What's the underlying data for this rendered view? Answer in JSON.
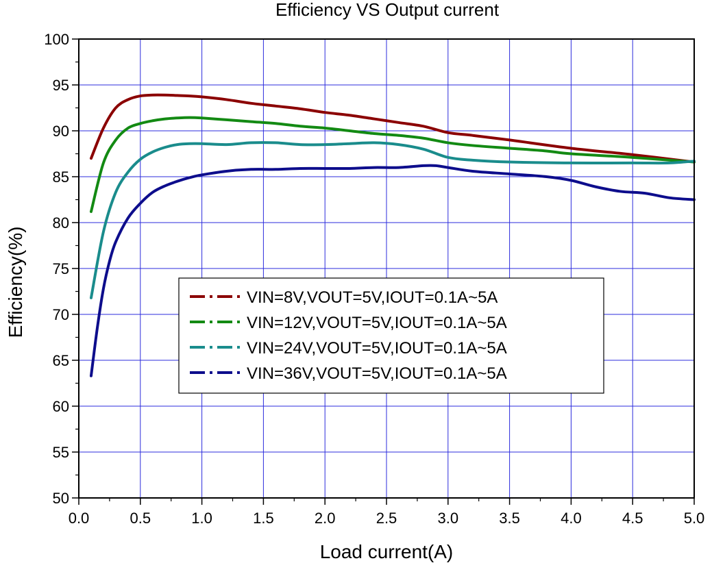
{
  "chart_data": {
    "type": "line",
    "title": "Efficiency VS Output current",
    "xlabel": "Load current(A)",
    "ylabel": "Efficiency(%)",
    "xlim": [
      0.0,
      5.0
    ],
    "ylim": [
      50,
      100
    ],
    "xticks": [
      "0.0",
      "0.5",
      "1.0",
      "1.5",
      "2.0",
      "2.5",
      "3.0",
      "3.5",
      "4.0",
      "4.5",
      "5.0"
    ],
    "yticks": [
      "50",
      "55",
      "60",
      "65",
      "70",
      "75",
      "80",
      "85",
      "90",
      "95",
      "100"
    ],
    "grid": true,
    "legend_position": "center",
    "series": [
      {
        "name": "VIN=8V,VOUT=5V,IOUT=0.1A~5A",
        "color": "#8b0000",
        "x": [
          0.1,
          0.2,
          0.3,
          0.4,
          0.5,
          0.6,
          0.7,
          0.8,
          0.9,
          1.0,
          1.2,
          1.4,
          1.6,
          1.8,
          2.0,
          2.2,
          2.4,
          2.6,
          2.8,
          3.0,
          3.2,
          3.5,
          4.0,
          4.5,
          5.0
        ],
        "y": [
          87.0,
          90.3,
          92.5,
          93.4,
          93.8,
          93.9,
          93.9,
          93.85,
          93.8,
          93.7,
          93.4,
          93.0,
          92.7,
          92.4,
          92.0,
          91.7,
          91.3,
          90.9,
          90.5,
          89.8,
          89.5,
          89.0,
          88.1,
          87.4,
          86.6
        ]
      },
      {
        "name": "VIN=12V,VOUT=5V,IOUT=0.1A~5A",
        "color": "#138a13",
        "x": [
          0.1,
          0.2,
          0.3,
          0.4,
          0.5,
          0.6,
          0.7,
          0.8,
          0.9,
          1.0,
          1.2,
          1.4,
          1.6,
          1.8,
          2.0,
          2.2,
          2.4,
          2.6,
          2.8,
          3.0,
          3.2,
          3.5,
          3.8,
          4.0,
          4.5,
          5.0
        ],
        "y": [
          81.2,
          86.5,
          89.0,
          90.3,
          90.8,
          91.1,
          91.3,
          91.4,
          91.45,
          91.4,
          91.2,
          91.0,
          90.8,
          90.5,
          90.3,
          90.0,
          89.7,
          89.5,
          89.2,
          88.7,
          88.4,
          88.1,
          87.8,
          87.5,
          87.1,
          86.6
        ]
      },
      {
        "name": "VIN=24V,VOUT=5V,IOUT=0.1A~5A",
        "color": "#1a8c8c",
        "x": [
          0.1,
          0.2,
          0.3,
          0.4,
          0.5,
          0.6,
          0.7,
          0.8,
          0.9,
          1.0,
          1.2,
          1.4,
          1.6,
          1.8,
          2.0,
          2.2,
          2.4,
          2.6,
          2.8,
          3.0,
          3.2,
          3.5,
          4.0,
          4.5,
          4.8,
          5.0
        ],
        "y": [
          71.8,
          79.0,
          83.3,
          85.5,
          86.9,
          87.7,
          88.2,
          88.5,
          88.6,
          88.6,
          88.5,
          88.7,
          88.7,
          88.5,
          88.5,
          88.6,
          88.7,
          88.5,
          88.0,
          87.1,
          86.8,
          86.6,
          86.5,
          86.5,
          86.5,
          86.7
        ]
      },
      {
        "name": "VIN=36V,VOUT=5V,IOUT=0.1A~5A",
        "color": "#0d0d8c",
        "x": [
          0.1,
          0.15,
          0.2,
          0.25,
          0.3,
          0.4,
          0.5,
          0.6,
          0.7,
          0.8,
          0.9,
          1.0,
          1.2,
          1.4,
          1.6,
          1.8,
          2.0,
          2.2,
          2.4,
          2.6,
          2.8,
          2.9,
          3.0,
          3.2,
          3.5,
          3.8,
          4.0,
          4.2,
          4.4,
          4.6,
          4.8,
          5.0
        ],
        "y": [
          63.3,
          68.5,
          72.8,
          75.8,
          77.9,
          80.5,
          82.1,
          83.3,
          84.0,
          84.5,
          84.9,
          85.2,
          85.6,
          85.8,
          85.8,
          85.9,
          85.9,
          85.9,
          86.0,
          86.0,
          86.2,
          86.2,
          86.0,
          85.6,
          85.3,
          85.0,
          84.6,
          83.9,
          83.4,
          83.2,
          82.7,
          82.5
        ]
      }
    ]
  }
}
